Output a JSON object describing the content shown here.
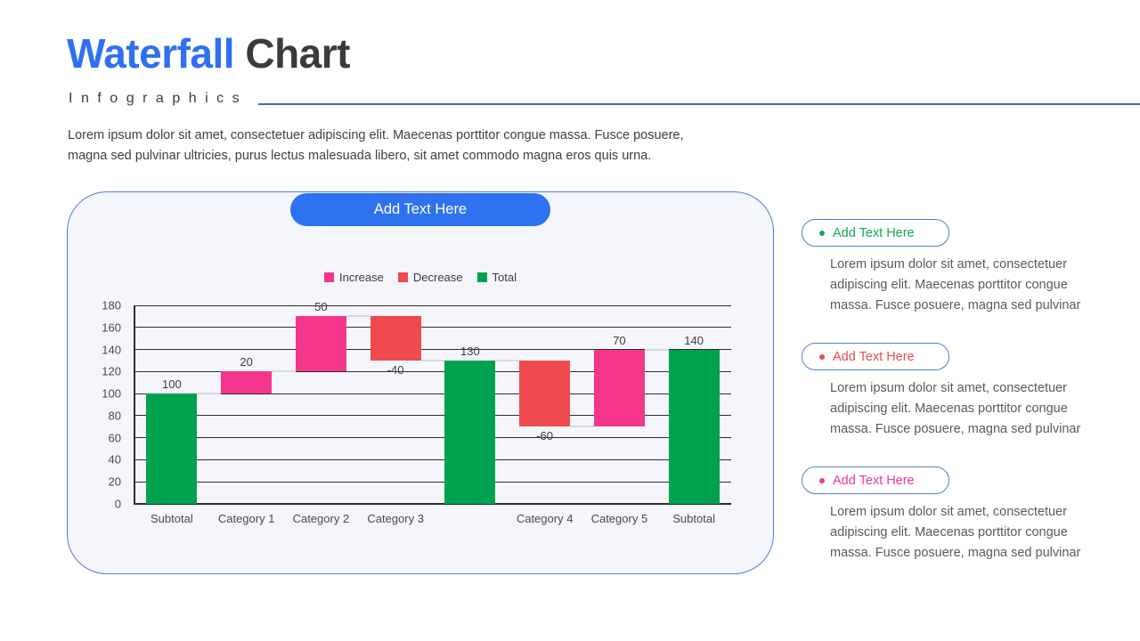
{
  "header": {
    "title_primary": "Waterfall",
    "title_secondary": "Chart",
    "subtitle": "Infographics",
    "intro": "Lorem ipsum dolor sit amet, consectetuer adipiscing elit. Maecenas porttitor congue massa. Fusce posuere, magna sed pulvinar ultricies, purus lectus malesuada libero, sit amet commodo magna eros quis urna."
  },
  "colors": {
    "accent_blue": "#2E72F0",
    "title_blue": "#2F70F0",
    "title_dark": "#3B3B3A",
    "header_rule": "#3E6CB0",
    "card_border": "#4C7FD6",
    "card_background": "#F4F6FB",
    "increase_pink": "#F5368C",
    "decrease_red": "#EF4A4E",
    "total_green": "#00A24F",
    "connector_gray": "#D8DADF"
  },
  "chart_card": {
    "button_label": "Add Text Here"
  },
  "chart_data": {
    "type": "bar",
    "subtype": "waterfall",
    "title": "",
    "xlabel": "",
    "ylabel": "",
    "ylim": [
      0,
      180
    ],
    "yticks": [
      0,
      20,
      40,
      60,
      80,
      100,
      120,
      140,
      160,
      180
    ],
    "grid": true,
    "legend_position": "top",
    "legend": [
      {
        "label": "Increase",
        "color": "#F5368C"
      },
      {
        "label": "Decrease",
        "color": "#EF4A4E"
      },
      {
        "label": "Total",
        "color": "#00A24F"
      }
    ],
    "colors": {
      "increase": "#F5368C",
      "decrease": "#EF4A4E",
      "total": "#00A24F"
    },
    "categories": [
      "Subtotal",
      "Category 1",
      "Category 2",
      "Category 3",
      "",
      "Category 4",
      "Category 5",
      "Subtotal"
    ],
    "bars": [
      {
        "category": "Subtotal",
        "type": "total",
        "start": 0,
        "end": 100,
        "label": "100"
      },
      {
        "category": "Category 1",
        "type": "increase",
        "start": 100,
        "end": 120,
        "label": "20"
      },
      {
        "category": "Category 2",
        "type": "increase",
        "start": 120,
        "end": 170,
        "label": "50"
      },
      {
        "category": "Category 3",
        "type": "decrease",
        "start": 170,
        "end": 130,
        "label": "-40"
      },
      {
        "category": "",
        "type": "total",
        "start": 0,
        "end": 130,
        "label": "130"
      },
      {
        "category": "Category 4",
        "type": "decrease",
        "start": 130,
        "end": 70,
        "label": "-60"
      },
      {
        "category": "Category 5",
        "type": "increase",
        "start": 70,
        "end": 140,
        "label": "70"
      },
      {
        "category": "Subtotal",
        "type": "total",
        "start": 0,
        "end": 140,
        "label": "140"
      }
    ]
  },
  "callouts": [
    {
      "label": "Add Text Here",
      "color": "#0FA958",
      "body": "Lorem ipsum dolor sit amet, consectetuer adipiscing elit. Maecenas porttitor congue massa. Fusce posuere, magna sed pulvinar"
    },
    {
      "label": "Add Text Here",
      "color": "#E84C4C",
      "body": "Lorem ipsum dolor sit amet, consectetuer adipiscing elit. Maecenas porttitor congue massa. Fusce posuere, magna sed pulvinar"
    },
    {
      "label": "Add Text Here",
      "color": "#F0388F",
      "body": "Lorem ipsum dolor sit amet, consectetuer adipiscing elit. Maecenas porttitor congue massa. Fusce posuere, magna sed pulvinar"
    }
  ]
}
